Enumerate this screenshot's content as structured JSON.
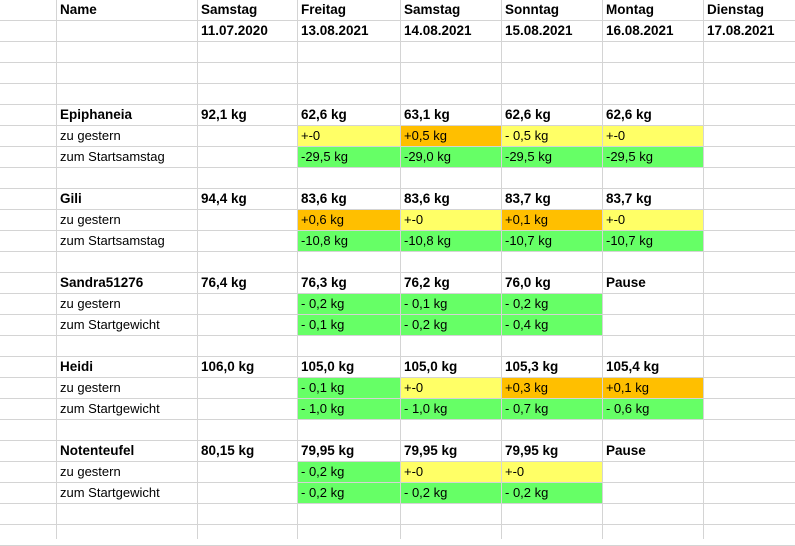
{
  "colors": {
    "yellow": "#ffff66",
    "orange": "#ffbf00",
    "green": "#66ff66"
  },
  "header": {
    "name_label": "Name",
    "days": [
      {
        "weekday": "Samstag",
        "date": "11.07.2020"
      },
      {
        "weekday": "Freitag",
        "date": "13.08.2021"
      },
      {
        "weekday": "Samstag",
        "date": "14.08.2021"
      },
      {
        "weekday": "Sonntag",
        "date": "15.08.2021"
      },
      {
        "weekday": "Montag",
        "date": "16.08.2021"
      },
      {
        "weekday": "Dienstag",
        "date": "17.08.2021"
      }
    ]
  },
  "people": [
    {
      "name": "Epiphaneia",
      "weights": [
        "92,1 kg",
        "62,6 kg",
        "63,1 kg",
        "62,6 kg",
        "62,6 kg",
        ""
      ],
      "row2_label": "zu gestern",
      "row2": [
        {
          "v": "",
          "c": ""
        },
        {
          "v": "+-0",
          "c": "yellow"
        },
        {
          "v": "+0,5 kg",
          "c": "orange"
        },
        {
          "v": "- 0,5 kg",
          "c": "yellow"
        },
        {
          "v": "+-0",
          "c": "yellow"
        },
        {
          "v": "",
          "c": ""
        }
      ],
      "row3_label": "zum Startsamstag",
      "row3": [
        {
          "v": "",
          "c": ""
        },
        {
          "v": "-29,5 kg",
          "c": "green"
        },
        {
          "v": "-29,0 kg",
          "c": "green"
        },
        {
          "v": "-29,5 kg",
          "c": "green"
        },
        {
          "v": "-29,5 kg",
          "c": "green"
        },
        {
          "v": "",
          "c": ""
        }
      ]
    },
    {
      "name": "Gili",
      "weights": [
        "94,4 kg",
        "83,6 kg",
        "83,6 kg",
        "83,7 kg",
        "83,7 kg",
        ""
      ],
      "row2_label": "zu gestern",
      "row2": [
        {
          "v": "",
          "c": ""
        },
        {
          "v": "+0,6 kg",
          "c": "orange"
        },
        {
          "v": "+-0",
          "c": "yellow"
        },
        {
          "v": "+0,1 kg",
          "c": "orange"
        },
        {
          "v": "+-0",
          "c": "yellow"
        },
        {
          "v": "",
          "c": ""
        }
      ],
      "row3_label": "zum Startsamstag",
      "row3": [
        {
          "v": "",
          "c": ""
        },
        {
          "v": "-10,8 kg",
          "c": "green"
        },
        {
          "v": "-10,8 kg",
          "c": "green"
        },
        {
          "v": "-10,7 kg",
          "c": "green"
        },
        {
          "v": "-10,7 kg",
          "c": "green"
        },
        {
          "v": "",
          "c": ""
        }
      ]
    },
    {
      "name": "Sandra51276",
      "weights": [
        "76,4 kg",
        "76,3 kg",
        "76,2 kg",
        "76,0 kg",
        "Pause",
        ""
      ],
      "row2_label": "zu gestern",
      "row2": [
        {
          "v": "",
          "c": ""
        },
        {
          "v": "- 0,2 kg",
          "c": "green"
        },
        {
          "v": "- 0,1 kg",
          "c": "green"
        },
        {
          "v": "- 0,2 kg",
          "c": "green"
        },
        {
          "v": "",
          "c": ""
        },
        {
          "v": "",
          "c": ""
        }
      ],
      "row3_label": "zum Startgewicht",
      "row3": [
        {
          "v": "",
          "c": ""
        },
        {
          "v": "- 0,1 kg",
          "c": "green"
        },
        {
          "v": "- 0,2 kg",
          "c": "green"
        },
        {
          "v": "- 0,4 kg",
          "c": "green"
        },
        {
          "v": "",
          "c": ""
        },
        {
          "v": "",
          "c": ""
        }
      ]
    },
    {
      "name": "Heidi",
      "weights": [
        "106,0 kg",
        "105,0 kg",
        "105,0 kg",
        "105,3 kg",
        "105,4 kg",
        ""
      ],
      "row2_label": "zu gestern",
      "row2": [
        {
          "v": "",
          "c": ""
        },
        {
          "v": "- 0,1 kg",
          "c": "green"
        },
        {
          "v": "+-0",
          "c": "yellow"
        },
        {
          "v": "+0,3 kg",
          "c": "orange"
        },
        {
          "v": "+0,1 kg",
          "c": "orange"
        },
        {
          "v": "",
          "c": ""
        }
      ],
      "row3_label": "zum Startgewicht",
      "row3": [
        {
          "v": "",
          "c": ""
        },
        {
          "v": "- 1,0 kg",
          "c": "green"
        },
        {
          "v": "- 1,0 kg",
          "c": "green"
        },
        {
          "v": "- 0,7 kg",
          "c": "green"
        },
        {
          "v": "- 0,6 kg",
          "c": "green"
        },
        {
          "v": "",
          "c": ""
        }
      ]
    },
    {
      "name": "Notenteufel",
      "weights": [
        "80,15 kg",
        "79,95 kg",
        "79,95 kg",
        "79,95 kg",
        "Pause",
        ""
      ],
      "row2_label": "zu gestern",
      "row2": [
        {
          "v": "",
          "c": ""
        },
        {
          "v": "- 0,2 kg",
          "c": "green"
        },
        {
          "v": "+-0",
          "c": "yellow"
        },
        {
          "v": "+-0",
          "c": "yellow"
        },
        {
          "v": "",
          "c": ""
        },
        {
          "v": "",
          "c": ""
        }
      ],
      "row3_label": "zum Startgewicht",
      "row3": [
        {
          "v": "",
          "c": ""
        },
        {
          "v": "- 0,2 kg",
          "c": "green"
        },
        {
          "v": "- 0,2 kg",
          "c": "green"
        },
        {
          "v": "- 0,2 kg",
          "c": "green"
        },
        {
          "v": "",
          "c": ""
        },
        {
          "v": "",
          "c": ""
        }
      ]
    }
  ]
}
